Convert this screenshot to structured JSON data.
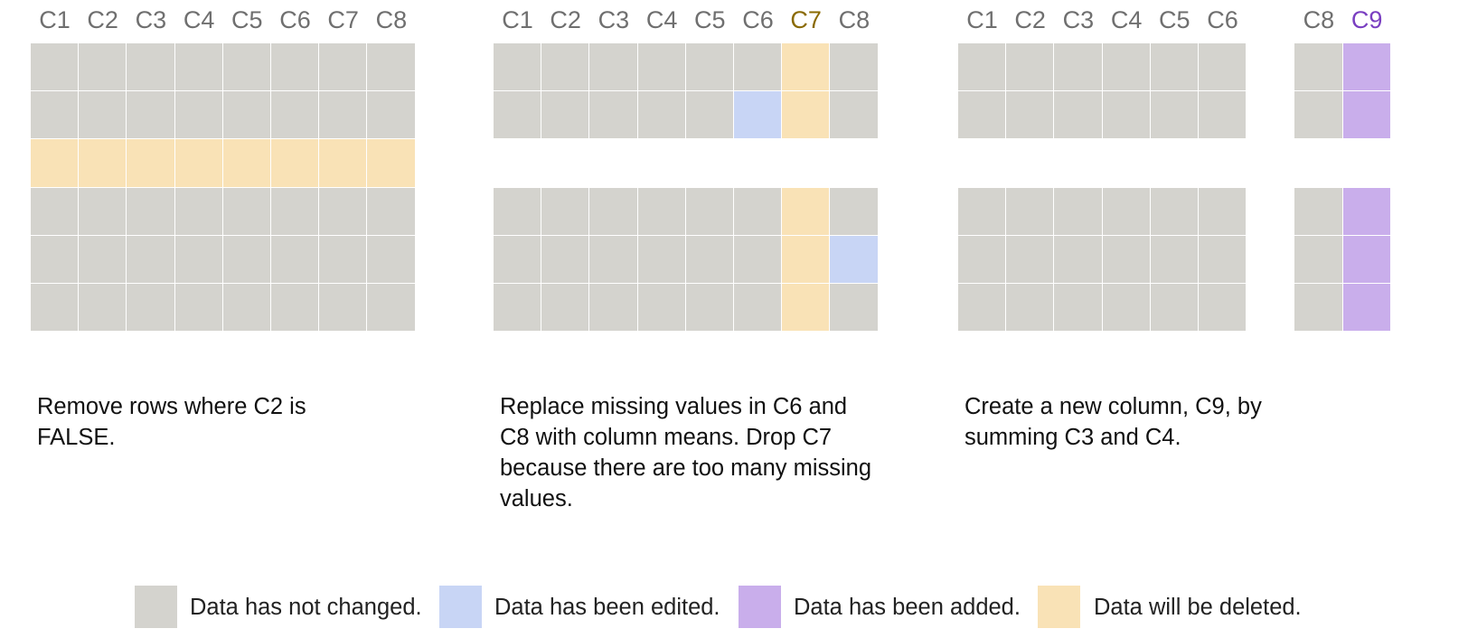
{
  "colors": {
    "unchanged": "#d4d3ce",
    "edited": "#c8d5f5",
    "added": "#c9aeeb",
    "deleted": "#f9e2b6",
    "header_default": "#6f6f6f",
    "header_deleted": "#8a6a00",
    "header_added": "#7a3fc1",
    "grid_line": "#ffffff"
  },
  "panels": [
    {
      "columns": [
        "C1",
        "C2",
        "C3",
        "C4",
        "C5",
        "C6",
        "C7",
        "C8"
      ],
      "caption": "Remove rows where C2 is FALSE.",
      "rows": [
        [
          "unchanged",
          "unchanged",
          "unchanged",
          "unchanged",
          "unchanged",
          "unchanged",
          "unchanged",
          "unchanged"
        ],
        [
          "unchanged",
          "unchanged",
          "unchanged",
          "unchanged",
          "unchanged",
          "unchanged",
          "unchanged",
          "unchanged"
        ],
        [
          "deleted",
          "deleted",
          "deleted",
          "deleted",
          "deleted",
          "deleted",
          "deleted",
          "deleted"
        ],
        [
          "unchanged",
          "unchanged",
          "unchanged",
          "unchanged",
          "unchanged",
          "unchanged",
          "unchanged",
          "unchanged"
        ],
        [
          "unchanged",
          "unchanged",
          "unchanged",
          "unchanged",
          "unchanged",
          "unchanged",
          "unchanged",
          "unchanged"
        ],
        [
          "unchanged",
          "unchanged",
          "unchanged",
          "unchanged",
          "unchanged",
          "unchanged",
          "unchanged",
          "unchanged"
        ]
      ]
    },
    {
      "columns": [
        "C1",
        "C2",
        "C3",
        "C4",
        "C5",
        "C6",
        "C7",
        "C8"
      ],
      "header_states": [
        "default",
        "default",
        "default",
        "default",
        "default",
        "default",
        "deleted",
        "default"
      ],
      "caption": "Replace missing values in C6 and C8 with column means. Drop C7 because there are too many missing values.",
      "rows": [
        [
          "unchanged",
          "unchanged",
          "unchanged",
          "unchanged",
          "unchanged",
          "unchanged",
          "deleted",
          "unchanged"
        ],
        [
          "unchanged",
          "unchanged",
          "unchanged",
          "unchanged",
          "unchanged",
          "edited",
          "deleted",
          "unchanged"
        ],
        null,
        [
          "unchanged",
          "unchanged",
          "unchanged",
          "unchanged",
          "unchanged",
          "unchanged",
          "deleted",
          "unchanged"
        ],
        [
          "unchanged",
          "unchanged",
          "unchanged",
          "unchanged",
          "unchanged",
          "unchanged",
          "deleted",
          "edited"
        ],
        [
          "unchanged",
          "unchanged",
          "unchanged",
          "unchanged",
          "unchanged",
          "unchanged",
          "deleted",
          "unchanged"
        ]
      ]
    },
    {
      "columns": [
        "C1",
        "C2",
        "C3",
        "C4",
        "C5",
        "C6",
        "",
        "C8",
        "C9"
      ],
      "header_states": [
        "default",
        "default",
        "default",
        "default",
        "default",
        "default",
        "default",
        "default",
        "added"
      ],
      "caption": "Create a new column, C9, by summing C3 and C4.",
      "rows": [
        [
          "unchanged",
          "unchanged",
          "unchanged",
          "unchanged",
          "unchanged",
          "unchanged",
          null,
          "unchanged",
          "added"
        ],
        [
          "unchanged",
          "unchanged",
          "unchanged",
          "unchanged",
          "unchanged",
          "unchanged",
          null,
          "unchanged",
          "added"
        ],
        null,
        [
          "unchanged",
          "unchanged",
          "unchanged",
          "unchanged",
          "unchanged",
          "unchanged",
          null,
          "unchanged",
          "added"
        ],
        [
          "unchanged",
          "unchanged",
          "unchanged",
          "unchanged",
          "unchanged",
          "unchanged",
          null,
          "unchanged",
          "added"
        ],
        [
          "unchanged",
          "unchanged",
          "unchanged",
          "unchanged",
          "unchanged",
          "unchanged",
          null,
          "unchanged",
          "added"
        ]
      ]
    }
  ],
  "legend": [
    {
      "state": "unchanged",
      "label": "Data has not changed."
    },
    {
      "state": "edited",
      "label": "Data has been edited."
    },
    {
      "state": "added",
      "label": "Data has been added."
    },
    {
      "state": "deleted",
      "label": "Data will be deleted."
    }
  ]
}
